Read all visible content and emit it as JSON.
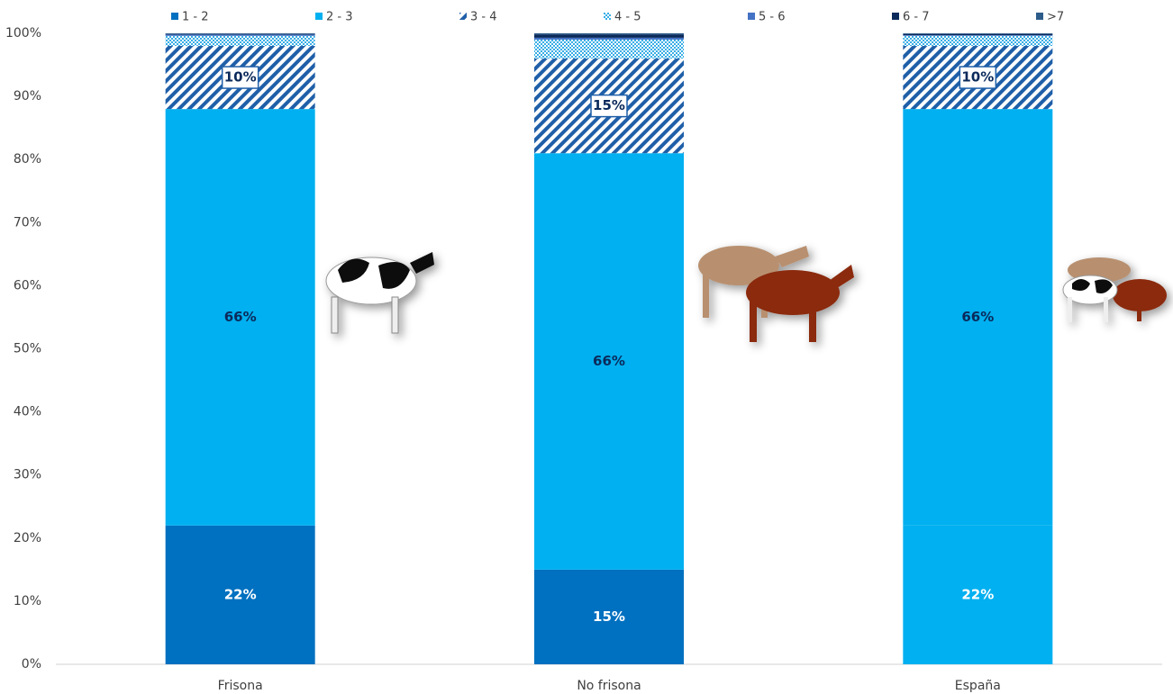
{
  "chart_data": {
    "type": "stacked_bar",
    "categories": [
      "Frisona",
      "No frisona",
      "España"
    ],
    "series": [
      {
        "name": "1 - 2",
        "color": "#0070c0",
        "colors": [
          "#0070c0",
          "#0070c0",
          "#00b0f0"
        ],
        "label_color": "#ffffff",
        "values": [
          22,
          15,
          22
        ],
        "value_labels": [
          "22%",
          "15%",
          "22%"
        ]
      },
      {
        "name": "2 - 3",
        "color": "#00b0f0",
        "label_color": "#0b2a5b",
        "values": [
          66,
          66,
          66
        ],
        "value_labels": [
          "66%",
          "66%",
          "66%"
        ]
      },
      {
        "name": "3 - 4",
        "color": "#1f5fa8",
        "pattern": "diagonal",
        "label_color": "#0b2a5b",
        "label_box": true,
        "values": [
          10,
          15,
          10
        ],
        "value_labels": [
          "10%",
          "15%",
          "10%"
        ]
      },
      {
        "name": "4 - 5",
        "color": "#39aee6",
        "pattern": "checker",
        "values": [
          1.6,
          3,
          1.6
        ]
      },
      {
        "name": "5 - 6",
        "color": "#4472c4",
        "values": [
          0.2,
          0.3,
          0.1
        ]
      },
      {
        "name": "6 - 7",
        "color": "#0b2a5b",
        "values": [
          0.1,
          0.5,
          0.2
        ]
      },
      {
        "name": ">7",
        "color": "#2e5c8a",
        "values": [
          0.1,
          0.2,
          0.1
        ]
      }
    ],
    "ylim": [
      0,
      100
    ],
    "yticks": [
      {
        "value": 0,
        "label": "0%"
      },
      {
        "value": 10,
        "label": "10%"
      },
      {
        "value": 20,
        "label": "20%"
      },
      {
        "value": 30,
        "label": "30%"
      },
      {
        "value": 40,
        "label": "40%"
      },
      {
        "value": 50,
        "label": "50%"
      },
      {
        "value": 60,
        "label": "60%"
      },
      {
        "value": 70,
        "label": "70%"
      },
      {
        "value": 80,
        "label": "80%"
      },
      {
        "value": 90,
        "label": "90%"
      },
      {
        "value": 100,
        "label": "100%"
      }
    ],
    "grid": false,
    "legend": "top"
  }
}
